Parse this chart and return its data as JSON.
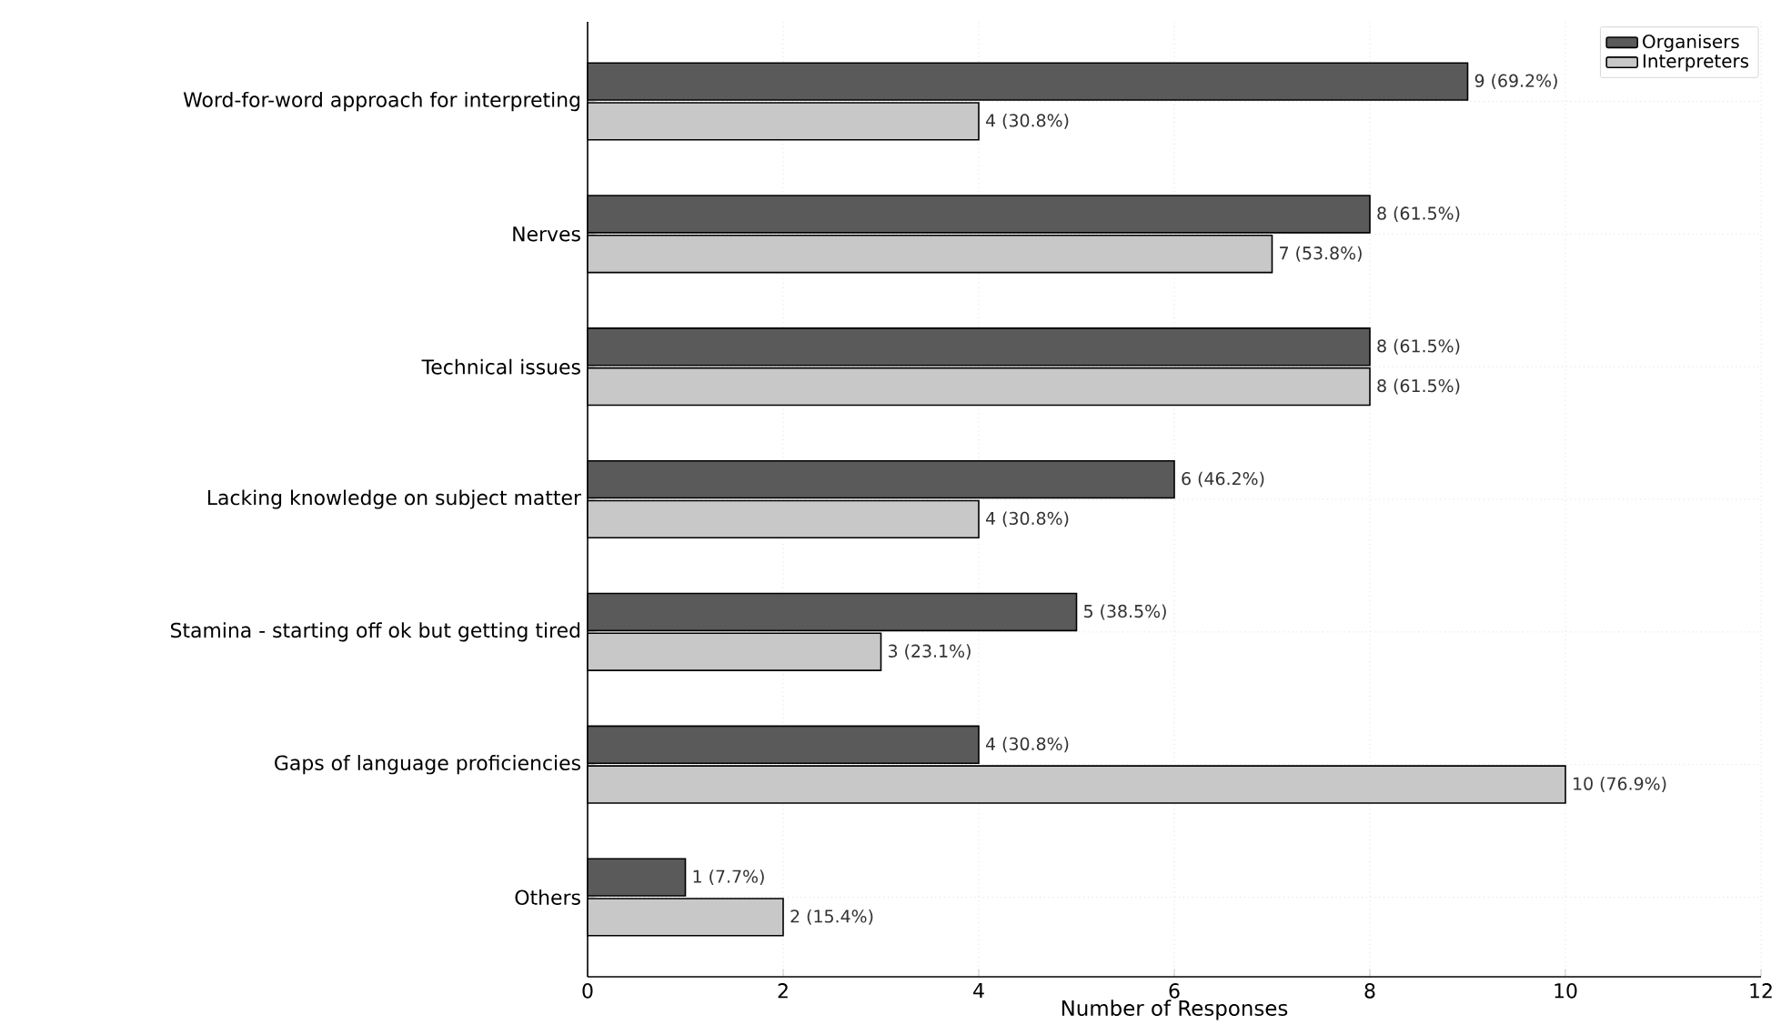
{
  "chart_data": {
    "type": "bar",
    "orientation": "horizontal",
    "xlabel": "Number of Responses",
    "categories": [
      "Word-for-word approach for interpreting",
      "Nerves",
      "Technical issues",
      "Lacking knowledge on subject matter",
      "Stamina - starting off ok but getting tired",
      "Gaps of language proficiencies",
      "Others"
    ],
    "series": [
      {
        "name": "Organisers",
        "color": "#5a5a5a",
        "values": [
          9,
          8,
          8,
          6,
          5,
          4,
          1
        ],
        "value_labels": [
          "9 (69.2%)",
          "8 (61.5%)",
          "8 (61.5%)",
          "6 (46.2%)",
          "5 (38.5%)",
          "4 (30.8%)",
          "1 (7.7%)"
        ]
      },
      {
        "name": "Interpreters",
        "color": "#c8c8c8",
        "values": [
          4,
          7,
          8,
          4,
          3,
          10,
          2
        ],
        "value_labels": [
          "4 (30.8%)",
          "7 (53.8%)",
          "8 (61.5%)",
          "4 (30.8%)",
          "3 (23.1%)",
          "10 (76.9%)",
          "2 (15.4%)"
        ]
      }
    ],
    "xlim": [
      0,
      12
    ],
    "xticks": [
      0,
      2,
      4,
      6,
      8,
      10,
      12
    ],
    "grid": true,
    "legend": "top right"
  }
}
